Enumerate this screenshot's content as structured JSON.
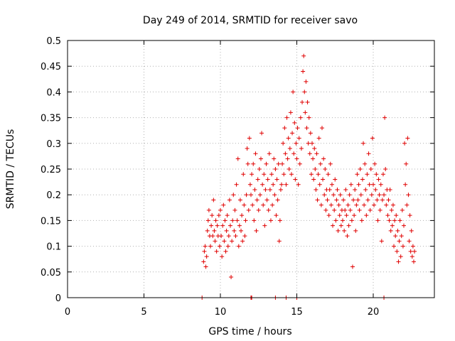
{
  "chart_data": {
    "type": "scatter",
    "title": "Day 249 of 2014, SRMTID for receiver savo",
    "xlabel": "GPS time / hours",
    "ylabel": "SRMTID / TECUs",
    "xlim": [
      0,
      24
    ],
    "ylim": [
      0,
      0.5
    ],
    "xticks": [
      0,
      5,
      10,
      15,
      20
    ],
    "yticks": [
      0,
      0.05,
      0.1,
      0.15,
      0.2,
      0.25,
      0.3,
      0.35,
      0.4,
      0.45,
      0.5
    ],
    "xtick_labels": [
      "0",
      "5",
      "10",
      "15",
      "20"
    ],
    "ytick_labels": [
      "0",
      "0.05",
      "0.1",
      "0.15",
      "0.2",
      "0.25",
      "0.3",
      "0.35",
      "0.4",
      "0.45",
      "0.5"
    ],
    "grid": true,
    "marker": "+",
    "color": "#e00000",
    "series": [
      {
        "name": "SRMTID",
        "points": [
          [
            8.8,
            0.0
          ],
          [
            12.0,
            0.0
          ],
          [
            12.05,
            0.0
          ],
          [
            13.6,
            0.0
          ],
          [
            14.3,
            0.0
          ],
          [
            15.0,
            0.0
          ],
          [
            20.7,
            0.0
          ],
          [
            8.9,
            0.07
          ],
          [
            8.95,
            0.09
          ],
          [
            9.0,
            0.1
          ],
          [
            9.05,
            0.06
          ],
          [
            9.1,
            0.08
          ],
          [
            9.15,
            0.13
          ],
          [
            9.2,
            0.15
          ],
          [
            9.25,
            0.17
          ],
          [
            9.3,
            0.12
          ],
          [
            9.35,
            0.1
          ],
          [
            9.4,
            0.14
          ],
          [
            9.45,
            0.16
          ],
          [
            9.5,
            0.12
          ],
          [
            9.55,
            0.19
          ],
          [
            9.6,
            0.13
          ],
          [
            9.65,
            0.11
          ],
          [
            9.7,
            0.15
          ],
          [
            9.75,
            0.09
          ],
          [
            9.8,
            0.14
          ],
          [
            9.85,
            0.12
          ],
          [
            9.9,
            0.16
          ],
          [
            9.95,
            0.1
          ],
          [
            10.0,
            0.17
          ],
          [
            10.05,
            0.12
          ],
          [
            10.1,
            0.08
          ],
          [
            10.15,
            0.14
          ],
          [
            10.2,
            0.18
          ],
          [
            10.25,
            0.11
          ],
          [
            10.3,
            0.15
          ],
          [
            10.35,
            0.09
          ],
          [
            10.4,
            0.13
          ],
          [
            10.45,
            0.16
          ],
          [
            10.5,
            0.1
          ],
          [
            10.55,
            0.12
          ],
          [
            10.6,
            0.19
          ],
          [
            10.65,
            0.14
          ],
          [
            10.7,
            0.04
          ],
          [
            10.75,
            0.11
          ],
          [
            10.8,
            0.15
          ],
          [
            10.85,
            0.2
          ],
          [
            10.9,
            0.13
          ],
          [
            10.95,
            0.17
          ],
          [
            11.0,
            0.12
          ],
          [
            11.05,
            0.22
          ],
          [
            11.1,
            0.15
          ],
          [
            11.15,
            0.27
          ],
          [
            11.2,
            0.1
          ],
          [
            11.25,
            0.14
          ],
          [
            11.3,
            0.19
          ],
          [
            11.35,
            0.13
          ],
          [
            11.4,
            0.16
          ],
          [
            11.45,
            0.11
          ],
          [
            11.5,
            0.24
          ],
          [
            11.55,
            0.18
          ],
          [
            11.6,
            0.12
          ],
          [
            11.65,
            0.15
          ],
          [
            11.7,
            0.2
          ],
          [
            11.75,
            0.29
          ],
          [
            11.8,
            0.26
          ],
          [
            11.85,
            0.17
          ],
          [
            11.9,
            0.31
          ],
          [
            11.95,
            0.22
          ],
          [
            12.0,
            0.2
          ],
          [
            12.05,
            0.24
          ],
          [
            12.1,
            0.18
          ],
          [
            12.15,
            0.26
          ],
          [
            12.2,
            0.15
          ],
          [
            12.25,
            0.21
          ],
          [
            12.3,
            0.28
          ],
          [
            12.35,
            0.13
          ],
          [
            12.4,
            0.19
          ],
          [
            12.45,
            0.23
          ],
          [
            12.5,
            0.17
          ],
          [
            12.55,
            0.25
          ],
          [
            12.6,
            0.2
          ],
          [
            12.65,
            0.27
          ],
          [
            12.7,
            0.32
          ],
          [
            12.75,
            0.22
          ],
          [
            12.8,
            0.18
          ],
          [
            12.85,
            0.24
          ],
          [
            12.9,
            0.14
          ],
          [
            12.95,
            0.21
          ],
          [
            13.0,
            0.26
          ],
          [
            13.05,
            0.19
          ],
          [
            13.1,
            0.23
          ],
          [
            13.15,
            0.17
          ],
          [
            13.2,
            0.28
          ],
          [
            13.25,
            0.21
          ],
          [
            13.3,
            0.15
          ],
          [
            13.35,
            0.24
          ],
          [
            13.4,
            0.18
          ],
          [
            13.45,
            0.22
          ],
          [
            13.5,
            0.27
          ],
          [
            13.55,
            0.2
          ],
          [
            13.6,
            0.25
          ],
          [
            13.65,
            0.16
          ],
          [
            13.7,
            0.23
          ],
          [
            13.75,
            0.19
          ],
          [
            13.8,
            0.26
          ],
          [
            13.85,
            0.11
          ],
          [
            13.9,
            0.15
          ],
          [
            13.95,
            0.21
          ],
          [
            14.0,
            0.22
          ],
          [
            14.05,
            0.26
          ],
          [
            14.1,
            0.3
          ],
          [
            14.15,
            0.24
          ],
          [
            14.2,
            0.33
          ],
          [
            14.25,
            0.28
          ],
          [
            14.3,
            0.22
          ],
          [
            14.35,
            0.35
          ],
          [
            14.4,
            0.27
          ],
          [
            14.45,
            0.31
          ],
          [
            14.5,
            0.25
          ],
          [
            14.55,
            0.29
          ],
          [
            14.6,
            0.36
          ],
          [
            14.65,
            0.24
          ],
          [
            14.7,
            0.32
          ],
          [
            14.75,
            0.4
          ],
          [
            14.8,
            0.28
          ],
          [
            14.85,
            0.34
          ],
          [
            14.9,
            0.23
          ],
          [
            14.95,
            0.3
          ],
          [
            15.0,
            0.27
          ],
          [
            15.05,
            0.33
          ],
          [
            15.1,
            0.22
          ],
          [
            15.15,
            0.31
          ],
          [
            15.2,
            0.26
          ],
          [
            15.25,
            0.35
          ],
          [
            15.3,
            0.29
          ],
          [
            15.35,
            0.38
          ],
          [
            15.4,
            0.44
          ],
          [
            15.45,
            0.47
          ],
          [
            15.5,
            0.4
          ],
          [
            15.55,
            0.36
          ],
          [
            15.6,
            0.42
          ],
          [
            15.65,
            0.33
          ],
          [
            15.7,
            0.38
          ],
          [
            15.75,
            0.3
          ],
          [
            15.8,
            0.35
          ],
          [
            15.85,
            0.28
          ],
          [
            15.9,
            0.32
          ],
          [
            15.95,
            0.24
          ],
          [
            16.0,
            0.3
          ],
          [
            16.05,
            0.27
          ],
          [
            16.1,
            0.23
          ],
          [
            16.15,
            0.29
          ],
          [
            16.2,
            0.25
          ],
          [
            16.25,
            0.21
          ],
          [
            16.3,
            0.28
          ],
          [
            16.35,
            0.19
          ],
          [
            16.4,
            0.24
          ],
          [
            16.45,
            0.31
          ],
          [
            16.5,
            0.22
          ],
          [
            16.55,
            0.26
          ],
          [
            16.6,
            0.18
          ],
          [
            16.65,
            0.33
          ],
          [
            16.7,
            0.23
          ],
          [
            16.75,
            0.27
          ],
          [
            16.8,
            0.2
          ],
          [
            16.85,
            0.25
          ],
          [
            16.9,
            0.17
          ],
          [
            16.95,
            0.21
          ],
          [
            17.0,
            0.19
          ],
          [
            17.05,
            0.24
          ],
          [
            17.1,
            0.16
          ],
          [
            17.15,
            0.21
          ],
          [
            17.2,
            0.26
          ],
          [
            17.25,
            0.18
          ],
          [
            17.3,
            0.22
          ],
          [
            17.35,
            0.14
          ],
          [
            17.4,
            0.2
          ],
          [
            17.45,
            0.17
          ],
          [
            17.5,
            0.23
          ],
          [
            17.55,
            0.15
          ],
          [
            17.6,
            0.19
          ],
          [
            17.65,
            0.21
          ],
          [
            17.7,
            0.13
          ],
          [
            17.75,
            0.18
          ],
          [
            17.8,
            0.16
          ],
          [
            17.85,
            0.2
          ],
          [
            17.9,
            0.14
          ],
          [
            17.95,
            0.17
          ],
          [
            18.0,
            0.15
          ],
          [
            18.05,
            0.19
          ],
          [
            18.1,
            0.13
          ],
          [
            18.15,
            0.17
          ],
          [
            18.2,
            0.21
          ],
          [
            18.25,
            0.16
          ],
          [
            18.3,
            0.12
          ],
          [
            18.35,
            0.18
          ],
          [
            18.4,
            0.14
          ],
          [
            18.45,
            0.2
          ],
          [
            18.5,
            0.17
          ],
          [
            18.55,
            0.22
          ],
          [
            18.6,
            0.15
          ],
          [
            18.65,
            0.06
          ],
          [
            18.7,
            0.19
          ],
          [
            18.75,
            0.16
          ],
          [
            18.8,
            0.21
          ],
          [
            18.85,
            0.13
          ],
          [
            18.9,
            0.18
          ],
          [
            18.95,
            0.24
          ],
          [
            19.0,
            0.19
          ],
          [
            19.05,
            0.22
          ],
          [
            19.1,
            0.17
          ],
          [
            19.15,
            0.25
          ],
          [
            19.2,
            0.2
          ],
          [
            19.25,
            0.15
          ],
          [
            19.3,
            0.23
          ],
          [
            19.35,
            0.3
          ],
          [
            19.4,
            0.18
          ],
          [
            19.45,
            0.26
          ],
          [
            19.5,
            0.21
          ],
          [
            19.55,
            0.16
          ],
          [
            19.6,
            0.24
          ],
          [
            19.65,
            0.19
          ],
          [
            19.7,
            0.28
          ],
          [
            19.75,
            0.22
          ],
          [
            19.8,
            0.17
          ],
          [
            19.85,
            0.25
          ],
          [
            19.9,
            0.2
          ],
          [
            19.95,
            0.31
          ],
          [
            20.0,
            0.22
          ],
          [
            20.05,
            0.18
          ],
          [
            20.1,
            0.26
          ],
          [
            20.15,
            0.21
          ],
          [
            20.2,
            0.24
          ],
          [
            20.25,
            0.19
          ],
          [
            20.3,
            0.15
          ],
          [
            20.35,
            0.23
          ],
          [
            20.4,
            0.2
          ],
          [
            20.45,
            0.17
          ],
          [
            20.5,
            0.22
          ],
          [
            20.55,
            0.11
          ],
          [
            20.6,
            0.19
          ],
          [
            20.65,
            0.24
          ],
          [
            20.7,
            0.2
          ],
          [
            20.75,
            0.35
          ],
          [
            20.8,
            0.25
          ],
          [
            20.85,
            0.18
          ],
          [
            20.9,
            0.21
          ],
          [
            20.95,
            0.16
          ],
          [
            21.0,
            0.19
          ],
          [
            21.05,
            0.15
          ],
          [
            21.1,
            0.21
          ],
          [
            21.15,
            0.13
          ],
          [
            21.2,
            0.17
          ],
          [
            21.25,
            0.14
          ],
          [
            21.3,
            0.18
          ],
          [
            21.35,
            0.1
          ],
          [
            21.4,
            0.15
          ],
          [
            21.45,
            0.12
          ],
          [
            21.5,
            0.16
          ],
          [
            21.55,
            0.09
          ],
          [
            21.6,
            0.13
          ],
          [
            21.65,
            0.07
          ],
          [
            21.7,
            0.11
          ],
          [
            21.75,
            0.15
          ],
          [
            21.8,
            0.08
          ],
          [
            21.85,
            0.12
          ],
          [
            21.9,
            0.17
          ],
          [
            21.95,
            0.1
          ],
          [
            22.0,
            0.14
          ],
          [
            22.05,
            0.3
          ],
          [
            22.1,
            0.22
          ],
          [
            22.15,
            0.26
          ],
          [
            22.2,
            0.18
          ],
          [
            22.25,
            0.31
          ],
          [
            22.3,
            0.2
          ],
          [
            22.35,
            0.11
          ],
          [
            22.4,
            0.16
          ],
          [
            22.45,
            0.09
          ],
          [
            22.5,
            0.13
          ],
          [
            22.55,
            0.08
          ],
          [
            22.6,
            0.1
          ],
          [
            22.65,
            0.07
          ],
          [
            22.7,
            0.09
          ]
        ]
      }
    ]
  }
}
